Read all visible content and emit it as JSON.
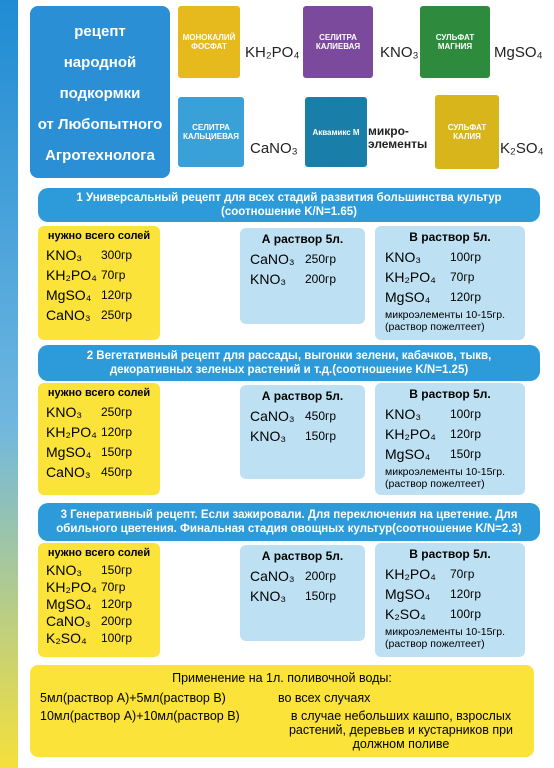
{
  "header": {
    "title_lines": [
      "рецепт",
      "народной",
      "подкормки",
      "от Любопытного",
      "Агротехнолога"
    ]
  },
  "products": [
    {
      "label": "МОНОКАЛИЙ ФОСФАТ",
      "formula": "KH₂PO₄"
    },
    {
      "label": "СЕЛИТРА КАЛИЕВАЯ",
      "formula": "KNO₃"
    },
    {
      "label": "СУЛЬФАТ МАГНИЯ",
      "formula": "MgSO₄"
    },
    {
      "label": "СЕЛИТРА КАЛЬЦИЕВАЯ",
      "formula": "CaNO₃"
    },
    {
      "label": "Аквамикс М",
      "formula": "микро-элементы"
    },
    {
      "label": "СУЛЬФАТ КАЛИЯ",
      "formula": "K₂SO₄"
    }
  ],
  "sections": [
    {
      "title": "1 Универсальный рецепт для всех стадий развития большинства культур (соотношение K/N=1.65)",
      "salts_title": "нужно всего солей",
      "salts": [
        [
          "KNO₃",
          "300гр"
        ],
        [
          "KH₂PO₄",
          "70гр"
        ],
        [
          "MgSO₄",
          "120гр"
        ],
        [
          "CaNO₃",
          "250гр"
        ]
      ],
      "a": {
        "title": "А раствор 5л.",
        "items": [
          [
            "CaNO₃",
            "250гр"
          ],
          [
            "KNO₃",
            "200гр"
          ]
        ]
      },
      "b": {
        "title": "В раствор 5л.",
        "items": [
          [
            "KNO₃",
            "100гр"
          ],
          [
            "KH₂PO₄",
            "70гр"
          ],
          [
            "MgSO₄",
            "120гр"
          ]
        ],
        "note": "микроэлементы 10-15гр. (раствор пожелтеет)"
      }
    },
    {
      "title": "2 Вегетативный рецепт для рассады, выгонки зелени, кабачков, тыкв, декоративных зеленых растений и т.д.(соотношение K/N=1.25)",
      "salts_title": "нужно всего солей",
      "salts": [
        [
          "KNO₃",
          "250гр"
        ],
        [
          "KH₂PO₄",
          "120гр"
        ],
        [
          "MgSO₄",
          "150гр"
        ],
        [
          "CaNO₃",
          "450гр"
        ]
      ],
      "a": {
        "title": "А раствор 5л.",
        "items": [
          [
            "CaNO₃",
            "450гр"
          ],
          [
            "KNO₃",
            "150гр"
          ]
        ]
      },
      "b": {
        "title": "В раствор 5л.",
        "items": [
          [
            "KNO₃",
            "100гр"
          ],
          [
            "KH₂PO₄",
            "120гр"
          ],
          [
            "MgSO₄",
            "150гр"
          ]
        ],
        "note": "микроэлементы 10-15гр. (раствор пожелтеет)"
      }
    },
    {
      "title": "3 Генеративный рецепт. Если зажировали. Для переключения на цветение. Для обильного цветения. Финальная стадия овощных культур(соотношение K/N=2.3)",
      "salts_title": "нужно всего солей",
      "salts": [
        [
          "KNO₃",
          "150гр"
        ],
        [
          "KH₂PO₄",
          "70гр"
        ],
        [
          "MgSO₄",
          "120гр"
        ],
        [
          "CaNO₃",
          "200гр"
        ],
        [
          "K₂SO₄",
          "100гр"
        ]
      ],
      "a": {
        "title": "А раствор 5л.",
        "items": [
          [
            "CaNO₃",
            "200гр"
          ],
          [
            "KNO₃",
            "150гр"
          ]
        ]
      },
      "b": {
        "title": "В раствор 5л.",
        "items": [
          [
            "KH₂PO₄",
            "70гр"
          ],
          [
            "MgSO₄",
            "120гр"
          ],
          [
            "K₂SO₄",
            "100гр"
          ]
        ],
        "note": "микроэлементы 10-15гр. (раствор пожелтеет)"
      }
    }
  ],
  "footer": {
    "title": "Применение на 1л. поливочной воды:",
    "rows": [
      [
        "5мл(раствор А)+5мл(раствор В)",
        "во всех случаях"
      ],
      [
        "10мл(раствор А)+10мл(раствор В)",
        "в случае небольших кашпо, взрослых растений, деревьев и кустарников при должном поливе"
      ]
    ]
  }
}
